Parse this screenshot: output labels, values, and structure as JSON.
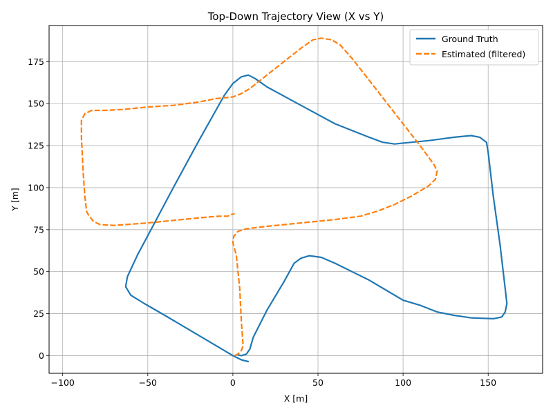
{
  "chart_data": {
    "type": "line",
    "title": "Top-Down Trajectory View (X vs Y)",
    "xlabel": "X [m]",
    "ylabel": "Y [m]",
    "xlim": [
      -108,
      182
    ],
    "ylim": [
      -10.5,
      196.5
    ],
    "xticks": [
      -100,
      -50,
      0,
      50,
      100,
      150
    ],
    "yticks": [
      0,
      25,
      50,
      75,
      100,
      125,
      150,
      175
    ],
    "grid": true,
    "legend_position": "top-right",
    "series": [
      {
        "name": "Ground Truth",
        "color": "#1f77b4",
        "style": "solid",
        "points": [
          [
            9,
            -3.5
          ],
          [
            5,
            -2.5
          ],
          [
            0,
            0
          ],
          [
            -10,
            6
          ],
          [
            -25,
            15
          ],
          [
            -40,
            24
          ],
          [
            -52,
            31
          ],
          [
            -60,
            36
          ],
          [
            -63,
            41
          ],
          [
            -62,
            47
          ],
          [
            -56,
            60
          ],
          [
            -46,
            79
          ],
          [
            -35,
            100
          ],
          [
            -20,
            128
          ],
          [
            -5,
            155
          ],
          [
            0,
            162
          ],
          [
            5,
            166
          ],
          [
            9,
            167
          ],
          [
            13,
            165
          ],
          [
            20,
            160
          ],
          [
            40,
            149
          ],
          [
            60,
            138
          ],
          [
            80,
            130
          ],
          [
            88,
            127
          ],
          [
            95,
            126
          ],
          [
            105,
            127
          ],
          [
            115,
            128
          ],
          [
            130,
            130
          ],
          [
            140,
            131
          ],
          [
            145,
            130
          ],
          [
            149,
            127
          ],
          [
            150,
            121
          ],
          [
            153,
            95
          ],
          [
            157,
            66
          ],
          [
            160,
            40
          ],
          [
            161,
            31
          ],
          [
            160,
            26
          ],
          [
            158,
            23
          ],
          [
            153,
            22
          ],
          [
            140,
            22.5
          ],
          [
            130,
            24
          ],
          [
            120,
            26
          ],
          [
            110,
            30
          ],
          [
            100,
            33
          ],
          [
            90,
            39
          ],
          [
            80,
            45
          ],
          [
            70,
            50
          ],
          [
            60,
            55
          ],
          [
            52,
            58.5
          ],
          [
            45,
            59.5
          ],
          [
            40,
            58
          ],
          [
            36,
            55
          ],
          [
            30,
            44
          ],
          [
            20,
            27
          ],
          [
            12,
            11
          ],
          [
            10,
            4
          ],
          [
            8,
            1
          ],
          [
            5,
            0
          ],
          [
            3,
            0.5
          ]
        ]
      },
      {
        "name": "Estimated (filtered)",
        "color": "#ff7f0e",
        "style": "dashed",
        "points": [
          [
            1,
            0
          ],
          [
            3,
            1
          ],
          [
            5,
            3
          ],
          [
            6,
            6
          ],
          [
            5,
            20
          ],
          [
            4,
            40
          ],
          [
            2,
            60
          ],
          [
            0,
            67
          ],
          [
            0.5,
            71
          ],
          [
            3,
            74
          ],
          [
            8,
            75.5
          ],
          [
            20,
            77
          ],
          [
            40,
            79
          ],
          [
            60,
            81
          ],
          [
            75,
            83
          ],
          [
            85,
            86
          ],
          [
            95,
            90
          ],
          [
            105,
            95
          ],
          [
            115,
            101
          ],
          [
            119,
            105
          ],
          [
            120,
            110
          ],
          [
            118,
            114
          ],
          [
            110,
            125
          ],
          [
            100,
            138
          ],
          [
            90,
            151
          ],
          [
            80,
            164
          ],
          [
            70,
            177
          ],
          [
            63,
            185
          ],
          [
            58,
            188
          ],
          [
            52,
            189
          ],
          [
            47,
            188
          ],
          [
            40,
            183
          ],
          [
            30,
            175
          ],
          [
            20,
            167
          ],
          [
            10,
            159
          ],
          [
            5,
            156
          ],
          [
            0,
            154
          ],
          [
            -10,
            153
          ],
          [
            -20,
            151
          ],
          [
            -35,
            149
          ],
          [
            -50,
            148
          ],
          [
            -65,
            146.5
          ],
          [
            -75,
            146
          ],
          [
            -83,
            146
          ],
          [
            -87,
            144
          ],
          [
            -89,
            140
          ],
          [
            -89,
            130
          ],
          [
            -88,
            110
          ],
          [
            -87,
            95
          ],
          [
            -86,
            86
          ],
          [
            -85,
            84
          ],
          [
            -82,
            80
          ],
          [
            -78,
            78
          ],
          [
            -70,
            77.5
          ],
          [
            -50,
            79
          ],
          [
            -30,
            81
          ],
          [
            -15,
            82.5
          ],
          [
            -8,
            83
          ],
          [
            -3,
            83
          ],
          [
            -1,
            84
          ],
          [
            1,
            84.5
          ]
        ]
      }
    ]
  }
}
